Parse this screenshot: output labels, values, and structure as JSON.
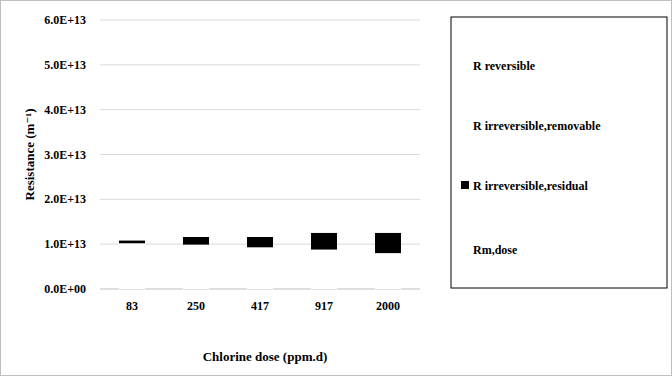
{
  "chart_data": {
    "type": "bar",
    "stacked": true,
    "grid": true,
    "legend": "right",
    "x_label": "Chlorine dose (ppm.d)",
    "y_label": "Resistance (m⁻¹)",
    "categories": [
      "83",
      "250",
      "417",
      "917",
      "2000"
    ],
    "ylim": [
      0,
      60000000000000
    ],
    "yticks": [
      {
        "value": 0,
        "label": "0.0E+00"
      },
      {
        "value": 10000000000000,
        "label": "1.0E+13"
      },
      {
        "value": 20000000000000,
        "label": "2.0E+13"
      },
      {
        "value": 30000000000000,
        "label": "3.0E+13"
      },
      {
        "value": 40000000000000,
        "label": "4.0E+13"
      },
      {
        "value": 50000000000000,
        "label": "5.0E+13"
      },
      {
        "value": 60000000000000,
        "label": "6.0E+13"
      }
    ],
    "series": [
      {
        "name": "Rm,dose",
        "color": "#ffffff",
        "values": [
          10200000000000,
          9900000000000,
          9300000000000,
          8800000000000,
          8000000000000
        ]
      },
      {
        "name": "R irreversible,residual",
        "color": "#000000",
        "values": [
          600000000000,
          1700000000000,
          2300000000000,
          3700000000000,
          4500000000000
        ]
      },
      {
        "name": "R irreversible,removable",
        "color": "#ffffff",
        "values": [
          0,
          0,
          0,
          0,
          0
        ]
      },
      {
        "name": "R reversible",
        "color": "#ffffff",
        "values": [
          0,
          0,
          0,
          0,
          0
        ]
      }
    ]
  }
}
